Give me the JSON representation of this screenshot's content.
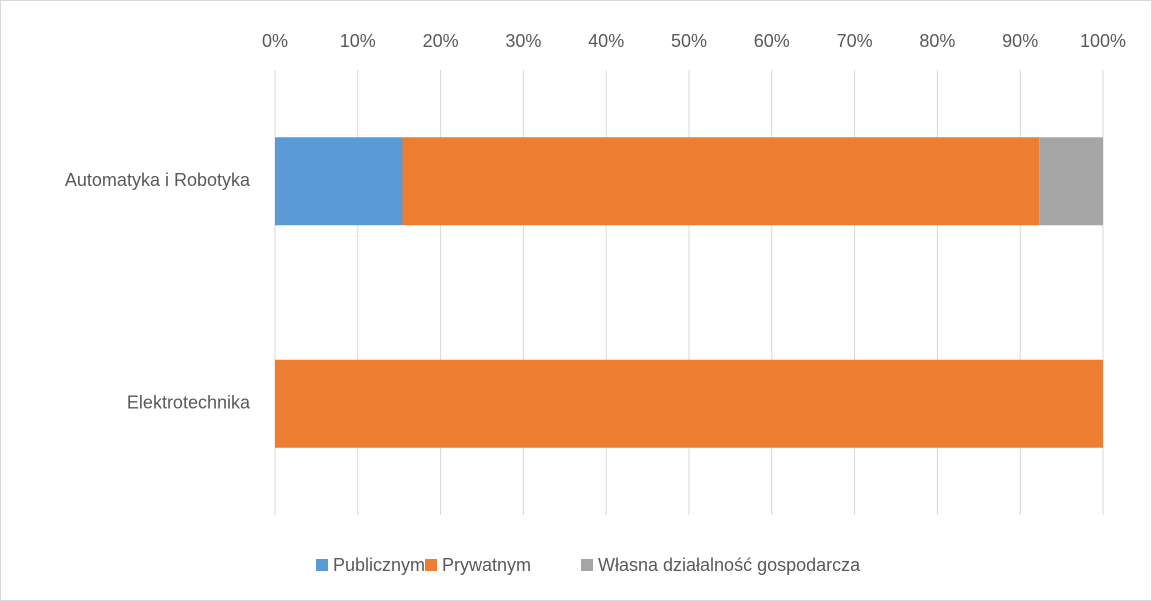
{
  "chart_data": {
    "type": "stacked_bar_horizontal",
    "categories": [
      "Automatyka i Robotyka",
      "Elektrotechnika"
    ],
    "series": [
      {
        "name": "Publicznym",
        "color": "#5b9bd5",
        "values": [
          15.4,
          0
        ]
      },
      {
        "name": "Prywatnym",
        "color": "#ed7d31",
        "values": [
          76.9,
          100
        ]
      },
      {
        "name": "Własna działalność gospodarcza",
        "color": "#a5a5a5",
        "values": [
          7.7,
          0
        ]
      }
    ],
    "xlim": [
      0,
      100
    ],
    "xticks": [
      {
        "value": 0,
        "label": "0%"
      },
      {
        "value": 10,
        "label": "10%"
      },
      {
        "value": 20,
        "label": "20%"
      },
      {
        "value": 30,
        "label": "30%"
      },
      {
        "value": 40,
        "label": "40%"
      },
      {
        "value": 50,
        "label": "50%"
      },
      {
        "value": 60,
        "label": "60%"
      },
      {
        "value": 70,
        "label": "70%"
      },
      {
        "value": 80,
        "label": "80%"
      },
      {
        "value": 90,
        "label": "90%"
      },
      {
        "value": 100,
        "label": "100%"
      }
    ],
    "grid": true,
    "legend": "bottom"
  }
}
